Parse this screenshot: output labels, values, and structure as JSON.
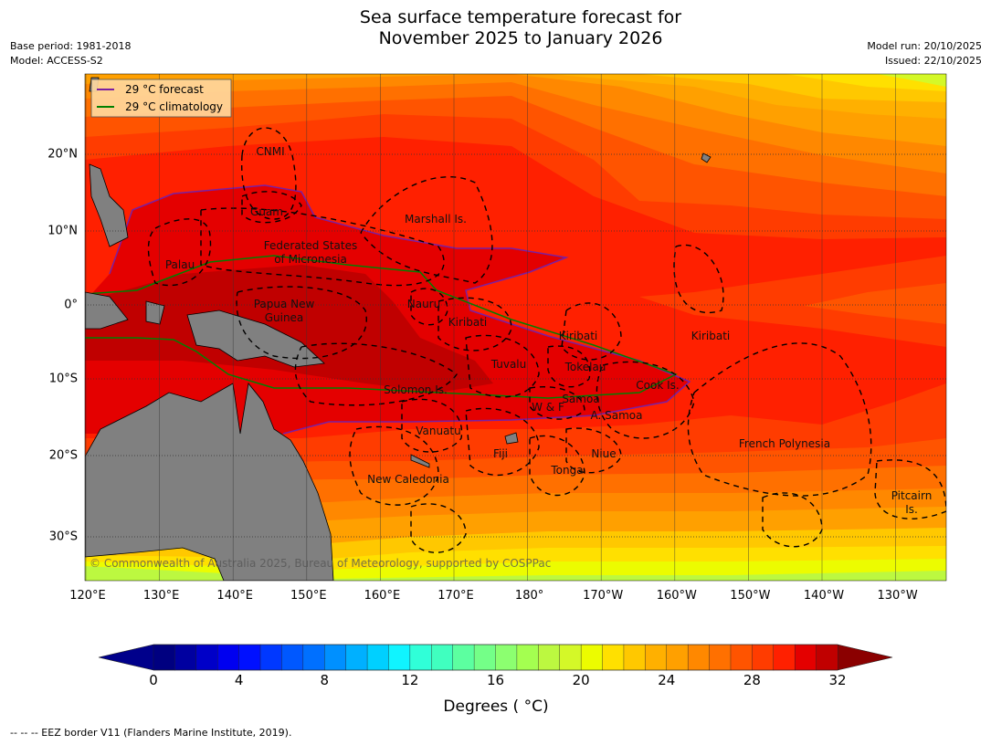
{
  "title": {
    "line1": "Sea surface temperature forecast for",
    "line2": "November 2025 to January 2026"
  },
  "meta_left": {
    "base_period": "Base period: 1981-2018",
    "model": "Model: ACCESS-S2"
  },
  "meta_right": {
    "model_run": "Model run: 20/10/2025",
    "issued": "Issued: 22/10/2025"
  },
  "legend": {
    "forecast": {
      "label": "29 °C  forecast",
      "color": "#7b1fa2"
    },
    "climatology": {
      "label": "29 °C  climatology",
      "color": "#008000"
    }
  },
  "lon_labels": [
    "120°E",
    "130°E",
    "140°E",
    "150°E",
    "160°E",
    "170°E",
    "180°",
    "170°W",
    "160°W",
    "150°W",
    "140°W",
    "130°W"
  ],
  "lat_labels": [
    "20°N",
    "10°N",
    "0°",
    "10°S",
    "20°S",
    "30°S"
  ],
  "regions": [
    "CNMI",
    "Guam",
    "Marshall Is.",
    "Federated States",
    "of Micronesia",
    "Palau",
    "Papua New",
    "Guinea",
    "Nauru",
    "Kiribati",
    "Kiribati",
    "Kiribati",
    "Tuvalu",
    "Tokelau",
    "Solomon Is.",
    "Cook Is.",
    "Samoa",
    "W & F",
    "A. Samoa",
    "Vanuatu",
    "Fiji",
    "Niue",
    "Tonga",
    "French Polynesia",
    "New Caledonia",
    "Pitcairn",
    "Is."
  ],
  "copyright": "© Commonwealth of Australia 2025, Bureau of Meteorology, supported by COSPPac",
  "colorbar": {
    "min": 0,
    "max": 32,
    "tick_labels": [
      "0",
      "4",
      "8",
      "12",
      "16",
      "20",
      "24",
      "28",
      "32"
    ],
    "label": "Degrees ( °C)",
    "under_color": "#00008b",
    "over_color": "#8b0000",
    "colors": [
      "#000080",
      "#0000a0",
      "#0000c8",
      "#0000f0",
      "#0010ff",
      "#0038ff",
      "#0058ff",
      "#0070ff",
      "#0090ff",
      "#00b0ff",
      "#00d0ff",
      "#10f4ff",
      "#30ffd8",
      "#40ffbf",
      "#5cffa0",
      "#74ff88",
      "#8cff70",
      "#a4ff50",
      "#bcf840",
      "#d4f828",
      "#ecfc00",
      "#ffe000",
      "#ffc800",
      "#ffb000",
      "#ffa000",
      "#ff8800",
      "#ff7000",
      "#ff5400",
      "#ff3c00",
      "#ff2000",
      "#e40000",
      "#c00000"
    ]
  },
  "footer": "--  --  -- EEZ border V11 (Flanders Marine Institute, 2019)."
}
